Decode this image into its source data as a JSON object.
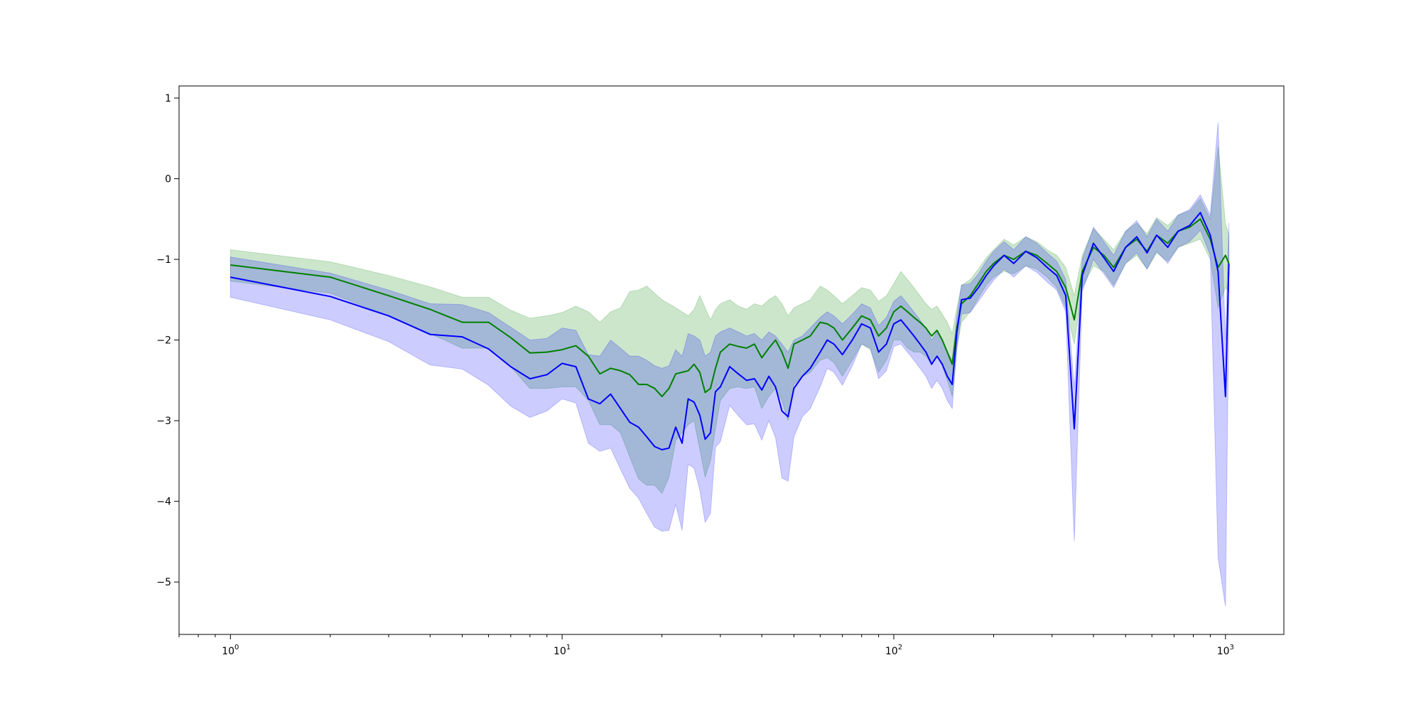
{
  "chart_data": {
    "type": "line",
    "title": "",
    "xlabel": "",
    "ylabel": "",
    "x_scale": "log",
    "xlim": [
      0.7,
      1500
    ],
    "ylim": [
      -5.65,
      1.15
    ],
    "grid": false,
    "x_ticks": [
      {
        "value": 1,
        "base": "10",
        "exp": "0"
      },
      {
        "value": 10,
        "base": "10",
        "exp": "1"
      },
      {
        "value": 100,
        "base": "10",
        "exp": "2"
      },
      {
        "value": 1000,
        "base": "10",
        "exp": "3"
      }
    ],
    "y_ticks": [
      {
        "value": 1,
        "label": "1"
      },
      {
        "value": 0,
        "label": "0"
      },
      {
        "value": -1,
        "label": "−1"
      },
      {
        "value": -2,
        "label": "−2"
      },
      {
        "value": -3,
        "label": "−3"
      },
      {
        "value": -4,
        "label": "−4"
      },
      {
        "value": -5,
        "label": "−5"
      }
    ],
    "series": [
      {
        "color": "#008000",
        "line_width": 2,
        "band_color": "#008000",
        "band_opacity": 0.2,
        "x": [
          1,
          2,
          3,
          4,
          5,
          6,
          7,
          8,
          9,
          10,
          11,
          12,
          13,
          14,
          15,
          16,
          17,
          18,
          19,
          20,
          21,
          22,
          23,
          24,
          25,
          26,
          27,
          28,
          29,
          30,
          32,
          34,
          36,
          38,
          40,
          42,
          44,
          46,
          48,
          50,
          53,
          56,
          60,
          63,
          66,
          70,
          75,
          80,
          85,
          90,
          95,
          100,
          105,
          110,
          115,
          120,
          125,
          130,
          135,
          140,
          145,
          150,
          155,
          160,
          170,
          180,
          190,
          200,
          215,
          230,
          250,
          270,
          290,
          310,
          330,
          350,
          370,
          400,
          430,
          460,
          500,
          540,
          580,
          620,
          670,
          720,
          780,
          840,
          900,
          950,
          1000,
          1024
        ],
        "y": [
          -1.07,
          -1.22,
          -1.45,
          -1.62,
          -1.78,
          -1.78,
          -1.97,
          -2.16,
          -2.15,
          -2.12,
          -2.07,
          -2.2,
          -2.42,
          -2.35,
          -2.38,
          -2.43,
          -2.55,
          -2.55,
          -2.6,
          -2.7,
          -2.6,
          -2.42,
          -2.4,
          -2.38,
          -2.3,
          -2.4,
          -2.65,
          -2.6,
          -2.35,
          -2.15,
          -2.05,
          -2.08,
          -2.1,
          -2.05,
          -2.22,
          -2.1,
          -2.0,
          -2.15,
          -2.35,
          -2.05,
          -2.0,
          -1.95,
          -1.78,
          -1.8,
          -1.85,
          -2.0,
          -1.85,
          -1.7,
          -1.75,
          -1.95,
          -1.85,
          -1.65,
          -1.58,
          -1.65,
          -1.72,
          -1.78,
          -1.85,
          -1.95,
          -1.88,
          -2.0,
          -2.15,
          -2.3,
          -1.85,
          -1.55,
          -1.45,
          -1.3,
          -1.15,
          -1.05,
          -0.95,
          -1.0,
          -0.9,
          -0.95,
          -1.05,
          -1.15,
          -1.35,
          -1.75,
          -1.15,
          -0.85,
          -0.95,
          -1.1,
          -0.85,
          -0.75,
          -0.9,
          -0.7,
          -0.8,
          -0.65,
          -0.6,
          -0.5,
          -0.75,
          -1.1,
          -0.95,
          -1.05
        ],
        "upper": [
          -0.88,
          -1.03,
          -1.2,
          -1.34,
          -1.47,
          -1.47,
          -1.63,
          -1.73,
          -1.7,
          -1.66,
          -1.58,
          -1.65,
          -1.78,
          -1.65,
          -1.6,
          -1.4,
          -1.38,
          -1.33,
          -1.42,
          -1.5,
          -1.55,
          -1.6,
          -1.65,
          -1.7,
          -1.62,
          -1.45,
          -1.6,
          -1.75,
          -1.62,
          -1.55,
          -1.5,
          -1.58,
          -1.62,
          -1.55,
          -1.58,
          -1.5,
          -1.45,
          -1.55,
          -1.7,
          -1.6,
          -1.55,
          -1.5,
          -1.33,
          -1.38,
          -1.45,
          -1.55,
          -1.45,
          -1.35,
          -1.38,
          -1.52,
          -1.45,
          -1.3,
          -1.15,
          -1.25,
          -1.35,
          -1.45,
          -1.55,
          -1.62,
          -1.58,
          -1.68,
          -1.78,
          -1.92,
          -1.6,
          -1.32,
          -1.25,
          -1.12,
          -0.98,
          -0.88,
          -0.75,
          -0.82,
          -0.72,
          -0.78,
          -0.88,
          -0.95,
          -1.1,
          -1.45,
          -0.95,
          -0.62,
          -0.75,
          -0.88,
          -0.65,
          -0.55,
          -0.68,
          -0.48,
          -0.58,
          -0.45,
          -0.4,
          -0.25,
          -0.5,
          0.4,
          -0.55,
          -0.7
        ],
        "lower": [
          -1.27,
          -1.42,
          -1.7,
          -1.92,
          -2.1,
          -2.1,
          -2.33,
          -2.6,
          -2.6,
          -2.58,
          -2.58,
          -2.75,
          -3.05,
          -3.05,
          -3.15,
          -3.45,
          -3.72,
          -3.8,
          -3.8,
          -3.9,
          -3.7,
          -3.25,
          -3.15,
          -3.05,
          -3.0,
          -3.35,
          -3.7,
          -3.5,
          -3.1,
          -2.75,
          -2.6,
          -2.58,
          -2.6,
          -2.58,
          -2.85,
          -2.7,
          -2.6,
          -2.75,
          -3.0,
          -2.55,
          -2.45,
          -2.4,
          -2.25,
          -2.22,
          -2.28,
          -2.45,
          -2.25,
          -2.05,
          -2.12,
          -2.4,
          -2.25,
          -2.0,
          -2.0,
          -2.1,
          -2.15,
          -2.15,
          -2.2,
          -2.3,
          -2.2,
          -2.32,
          -2.5,
          -2.7,
          -2.1,
          -1.78,
          -1.65,
          -1.48,
          -1.32,
          -1.22,
          -1.15,
          -1.18,
          -1.08,
          -1.12,
          -1.22,
          -1.35,
          -1.6,
          -2.05,
          -1.35,
          -1.08,
          -1.15,
          -1.32,
          -1.05,
          -0.95,
          -1.12,
          -0.92,
          -1.02,
          -0.85,
          -0.8,
          -0.75,
          -1.0,
          -1.6,
          -1.35,
          -1.4
        ]
      },
      {
        "color": "#0000ff",
        "line_width": 2,
        "band_color": "#0000ff",
        "band_opacity": 0.2,
        "x": [
          1,
          2,
          3,
          4,
          5,
          6,
          7,
          8,
          9,
          10,
          11,
          12,
          13,
          14,
          15,
          16,
          17,
          18,
          19,
          20,
          21,
          22,
          23,
          24,
          25,
          26,
          27,
          28,
          29,
          30,
          32,
          34,
          36,
          38,
          40,
          42,
          44,
          46,
          48,
          50,
          53,
          56,
          60,
          63,
          66,
          70,
          75,
          80,
          85,
          90,
          95,
          100,
          105,
          110,
          115,
          120,
          125,
          130,
          135,
          140,
          145,
          150,
          155,
          160,
          170,
          180,
          190,
          200,
          215,
          230,
          250,
          270,
          290,
          310,
          330,
          350,
          370,
          400,
          430,
          460,
          500,
          540,
          580,
          620,
          670,
          720,
          780,
          840,
          900,
          950,
          1000,
          1024
        ],
        "y": [
          -1.22,
          -1.46,
          -1.7,
          -1.93,
          -1.96,
          -2.11,
          -2.33,
          -2.48,
          -2.43,
          -2.29,
          -2.33,
          -2.73,
          -2.79,
          -2.67,
          -2.85,
          -3.02,
          -3.08,
          -3.2,
          -3.32,
          -3.36,
          -3.34,
          -3.08,
          -3.28,
          -2.73,
          -2.77,
          -2.93,
          -3.23,
          -3.15,
          -2.64,
          -2.58,
          -2.33,
          -2.42,
          -2.5,
          -2.48,
          -2.62,
          -2.45,
          -2.58,
          -2.88,
          -2.95,
          -2.6,
          -2.45,
          -2.35,
          -2.15,
          -2.0,
          -2.05,
          -2.18,
          -2.0,
          -1.8,
          -1.85,
          -2.15,
          -2.05,
          -1.8,
          -1.75,
          -1.85,
          -1.95,
          -2.05,
          -2.15,
          -2.3,
          -2.2,
          -2.3,
          -2.45,
          -2.55,
          -1.9,
          -1.5,
          -1.48,
          -1.35,
          -1.2,
          -1.08,
          -0.95,
          -1.05,
          -0.9,
          -0.98,
          -1.1,
          -1.2,
          -1.45,
          -3.1,
          -1.2,
          -0.8,
          -0.98,
          -1.15,
          -0.85,
          -0.72,
          -0.92,
          -0.7,
          -0.85,
          -0.65,
          -0.58,
          -0.42,
          -0.7,
          -1.15,
          -2.7,
          -1.05
        ],
        "upper": [
          -0.97,
          -1.17,
          -1.38,
          -1.55,
          -1.56,
          -1.66,
          -1.84,
          -2.0,
          -1.98,
          -1.85,
          -1.88,
          -2.18,
          -2.2,
          -2.0,
          -2.1,
          -2.2,
          -2.2,
          -2.25,
          -2.32,
          -2.35,
          -2.32,
          -2.12,
          -2.2,
          -1.92,
          -1.95,
          -2.0,
          -2.2,
          -2.15,
          -1.95,
          -1.9,
          -1.85,
          -1.9,
          -1.95,
          -1.92,
          -2.0,
          -1.9,
          -1.95,
          -2.05,
          -2.15,
          -2.0,
          -1.95,
          -1.85,
          -1.72,
          -1.65,
          -1.7,
          -1.8,
          -1.68,
          -1.55,
          -1.6,
          -1.82,
          -1.72,
          -1.52,
          -1.45,
          -1.55,
          -1.65,
          -1.75,
          -1.85,
          -2.0,
          -1.9,
          -2.0,
          -2.15,
          -2.25,
          -1.7,
          -1.32,
          -1.3,
          -1.18,
          -1.02,
          -0.9,
          -0.78,
          -0.88,
          -0.72,
          -0.8,
          -0.92,
          -1.02,
          -1.25,
          -2.6,
          -1.0,
          -0.6,
          -0.78,
          -0.95,
          -0.65,
          -0.52,
          -0.72,
          -0.5,
          -0.65,
          -0.45,
          -0.38,
          -0.2,
          -0.45,
          0.7,
          -2.0,
          -0.55
        ],
        "lower": [
          -1.47,
          -1.75,
          -2.02,
          -2.31,
          -2.36,
          -2.56,
          -2.82,
          -2.96,
          -2.88,
          -2.73,
          -2.78,
          -3.28,
          -3.38,
          -3.34,
          -3.6,
          -3.84,
          -3.96,
          -4.15,
          -4.32,
          -4.37,
          -4.36,
          -4.04,
          -4.36,
          -3.54,
          -3.59,
          -3.86,
          -4.26,
          -4.15,
          -3.33,
          -3.26,
          -2.81,
          -2.94,
          -3.05,
          -3.04,
          -3.24,
          -3.0,
          -3.21,
          -3.71,
          -3.75,
          -3.2,
          -2.95,
          -2.85,
          -2.58,
          -2.35,
          -2.4,
          -2.56,
          -2.32,
          -2.05,
          -2.1,
          -2.48,
          -2.38,
          -2.08,
          -2.05,
          -2.15,
          -2.25,
          -2.35,
          -2.45,
          -2.6,
          -2.5,
          -2.6,
          -2.75,
          -2.85,
          -2.1,
          -1.68,
          -1.66,
          -1.52,
          -1.38,
          -1.26,
          -1.12,
          -1.22,
          -1.08,
          -1.16,
          -1.28,
          -1.38,
          -1.65,
          -4.5,
          -1.4,
          -1.0,
          -1.18,
          -1.35,
          -1.05,
          -0.92,
          -1.12,
          -0.9,
          -1.05,
          -0.85,
          -0.78,
          -0.64,
          -0.95,
          -4.7,
          -5.3,
          -1.55
        ]
      }
    ]
  }
}
